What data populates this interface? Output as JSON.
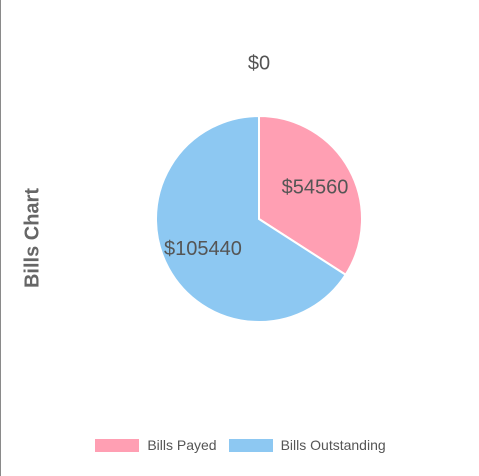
{
  "chart_data": {
    "type": "pie",
    "title": "Bills Chart",
    "top_label": "$0",
    "slices": [
      {
        "name": "Bills Payed",
        "value": 54560,
        "label": "$54560",
        "color": "#ff9fb3"
      },
      {
        "name": "Bills Outstanding",
        "value": 105440,
        "label": "$105440",
        "color": "#8dc8f2"
      }
    ],
    "legend_position": "bottom"
  }
}
